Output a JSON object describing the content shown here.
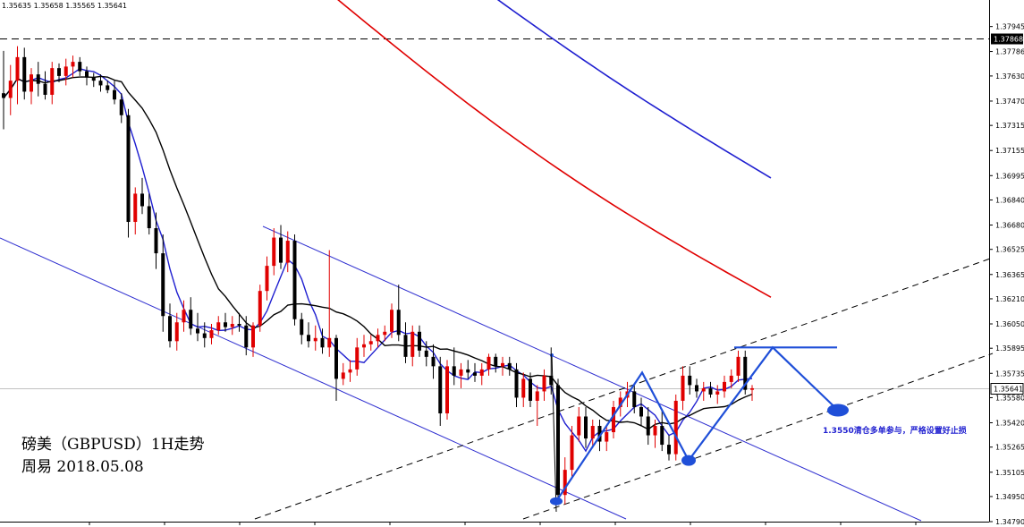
{
  "ohlc_header": "1.35635 1.35658 1.35565 1.35641",
  "title_line1": "磅美（GBPUSD）1H走势",
  "title_line2": "周易 2018.05.08",
  "note": "1.3550清仓多单参与，严格设置好止损",
  "colors": {
    "bull": "#e00000",
    "bear": "#000000",
    "ma_fast": "#1f1fd0",
    "ma_slow": "#000000",
    "ma_red": "#e00000",
    "ma_blue": "#1f1fd0",
    "channel": "#2f2fd0",
    "pattern": "#1f4fd8",
    "dashed": "#000000"
  },
  "chart_data": {
    "type": "candlestick",
    "symbol": "GBPUSD",
    "timeframe": "1H",
    "ylim": [
      1.3479,
      1.3804
    ],
    "y_ticks": [
      "1.37945",
      "1.37786",
      "1.37630",
      "1.37470",
      "1.37315",
      "1.37155",
      "1.36995",
      "1.36840",
      "1.36680",
      "1.36525",
      "1.36365",
      "1.36210",
      "1.36050",
      "1.35895",
      "1.35735",
      "1.35580",
      "1.35420",
      "1.35265",
      "1.35105",
      "1.34950",
      "1.34790"
    ],
    "marked_levels": [
      {
        "label": "1.37868",
        "value": 1.37868,
        "style": "dashed"
      },
      {
        "label": "1.35641",
        "value": 1.35641,
        "style": "current"
      }
    ],
    "candles": [
      [
        1.3752,
        1.3779,
        1.3729,
        1.3749
      ],
      [
        1.3749,
        1.377,
        1.3738,
        1.376
      ],
      [
        1.376,
        1.3782,
        1.3745,
        1.3775
      ],
      [
        1.3775,
        1.3781,
        1.3748,
        1.3753
      ],
      [
        1.3753,
        1.3768,
        1.3745,
        1.3764
      ],
      [
        1.3764,
        1.3772,
        1.375,
        1.3758
      ],
      [
        1.3758,
        1.3766,
        1.3748,
        1.3751
      ],
      [
        1.3751,
        1.3772,
        1.3745,
        1.3768
      ],
      [
        1.3768,
        1.3771,
        1.3759,
        1.3763
      ],
      [
        1.3763,
        1.3774,
        1.3757,
        1.3769
      ],
      [
        1.3769,
        1.3776,
        1.3762,
        1.3772
      ],
      [
        1.3772,
        1.3775,
        1.3763,
        1.3766
      ],
      [
        1.3766,
        1.3769,
        1.3757,
        1.3762
      ],
      [
        1.3762,
        1.3765,
        1.3756,
        1.376
      ],
      [
        1.376,
        1.3764,
        1.3753,
        1.3757
      ],
      [
        1.3757,
        1.376,
        1.3752,
        1.3754
      ],
      [
        1.3754,
        1.376,
        1.3745,
        1.3748
      ],
      [
        1.3748,
        1.3752,
        1.3733,
        1.3738
      ],
      [
        1.3738,
        1.3742,
        1.366,
        1.367
      ],
      [
        1.367,
        1.3692,
        1.3662,
        1.3688
      ],
      [
        1.3688,
        1.3698,
        1.3675,
        1.368
      ],
      [
        1.368,
        1.3688,
        1.3662,
        1.3666
      ],
      [
        1.3666,
        1.3676,
        1.364,
        1.365
      ],
      [
        1.365,
        1.3662,
        1.36,
        1.361
      ],
      [
        1.361,
        1.3618,
        1.359,
        1.3594
      ],
      [
        1.3594,
        1.3612,
        1.3588,
        1.3606
      ],
      [
        1.3606,
        1.362,
        1.36,
        1.3614
      ],
      [
        1.3614,
        1.3622,
        1.3598,
        1.3602
      ],
      [
        1.3602,
        1.3612,
        1.3594,
        1.3599
      ],
      [
        1.3599,
        1.3606,
        1.359,
        1.3596
      ],
      [
        1.3596,
        1.3605,
        1.3592,
        1.3601
      ],
      [
        1.3601,
        1.361,
        1.3598,
        1.3606
      ],
      [
        1.3606,
        1.3612,
        1.36,
        1.3603
      ],
      [
        1.3603,
        1.361,
        1.3598,
        1.3605
      ],
      [
        1.3605,
        1.3612,
        1.36,
        1.3604
      ],
      [
        1.3604,
        1.361,
        1.3585,
        1.359
      ],
      [
        1.359,
        1.3606,
        1.3584,
        1.3604
      ],
      [
        1.3604,
        1.363,
        1.36,
        1.3626
      ],
      [
        1.3626,
        1.3648,
        1.362,
        1.3642
      ],
      [
        1.3642,
        1.3666,
        1.3636,
        1.366
      ],
      [
        1.366,
        1.3668,
        1.364,
        1.3644
      ],
      [
        1.3644,
        1.3664,
        1.3638,
        1.3658
      ],
      [
        1.3658,
        1.3662,
        1.3604,
        1.3608
      ],
      [
        1.3608,
        1.3612,
        1.3592,
        1.3598
      ],
      [
        1.3598,
        1.3606,
        1.359,
        1.3594
      ],
      [
        1.3594,
        1.3604,
        1.3588,
        1.3596
      ],
      [
        1.3596,
        1.3602,
        1.3586,
        1.359
      ],
      [
        1.359,
        1.3652,
        1.3584,
        1.3596
      ],
      [
        1.3596,
        1.3598,
        1.3556,
        1.357
      ],
      [
        1.357,
        1.358,
        1.3566,
        1.3574
      ],
      [
        1.3574,
        1.3582,
        1.3568,
        1.3576
      ],
      [
        1.3576,
        1.3596,
        1.3572,
        1.359
      ],
      [
        1.359,
        1.3598,
        1.3584,
        1.3592
      ],
      [
        1.3592,
        1.3598,
        1.3588,
        1.3594
      ],
      [
        1.3594,
        1.3602,
        1.359,
        1.3598
      ],
      [
        1.3598,
        1.3604,
        1.3594,
        1.36
      ],
      [
        1.36,
        1.3618,
        1.3596,
        1.3614
      ],
      [
        1.3614,
        1.363,
        1.3594,
        1.3598
      ],
      [
        1.3598,
        1.3606,
        1.358,
        1.3584
      ],
      [
        1.3584,
        1.3604,
        1.3578,
        1.36
      ],
      [
        1.36,
        1.3604,
        1.3584,
        1.3588
      ],
      [
        1.3588,
        1.3594,
        1.3578,
        1.3584
      ],
      [
        1.3584,
        1.3592,
        1.357,
        1.3578
      ],
      [
        1.3578,
        1.3584,
        1.354,
        1.3548
      ],
      [
        1.3548,
        1.3582,
        1.3544,
        1.3578
      ],
      [
        1.3578,
        1.359,
        1.3566,
        1.3572
      ],
      [
        1.3572,
        1.358,
        1.3564,
        1.3576
      ],
      [
        1.3576,
        1.3582,
        1.357,
        1.3574
      ],
      [
        1.3574,
        1.358,
        1.3568,
        1.3572
      ],
      [
        1.3572,
        1.358,
        1.3566,
        1.3576
      ],
      [
        1.3576,
        1.3586,
        1.3572,
        1.3584
      ],
      [
        1.3584,
        1.3586,
        1.3574,
        1.3578
      ],
      [
        1.3578,
        1.3584,
        1.3572,
        1.358
      ],
      [
        1.358,
        1.3584,
        1.3572,
        1.3576
      ],
      [
        1.3576,
        1.358,
        1.3552,
        1.3558
      ],
      [
        1.3558,
        1.3574,
        1.3552,
        1.357
      ],
      [
        1.357,
        1.3574,
        1.3552,
        1.3556
      ],
      [
        1.3556,
        1.3566,
        1.354,
        1.3562
      ],
      [
        1.3562,
        1.3576,
        1.3556,
        1.3572
      ],
      [
        1.3572,
        1.359,
        1.356,
        1.3566
      ],
      [
        1.3566,
        1.357,
        1.349,
        1.3496
      ],
      [
        1.3496,
        1.352,
        1.349,
        1.3512
      ],
      [
        1.3512,
        1.354,
        1.3506,
        1.3534
      ],
      [
        1.3534,
        1.3552,
        1.353,
        1.3546
      ],
      [
        1.3546,
        1.3552,
        1.3526,
        1.3532
      ],
      [
        1.3532,
        1.3544,
        1.3526,
        1.354
      ],
      [
        1.354,
        1.3544,
        1.3524,
        1.353
      ],
      [
        1.353,
        1.354,
        1.3524,
        1.3536
      ],
      [
        1.3536,
        1.3556,
        1.3532,
        1.3552
      ],
      [
        1.3552,
        1.3562,
        1.3546,
        1.3558
      ],
      [
        1.3558,
        1.3568,
        1.3552,
        1.3562
      ],
      [
        1.3562,
        1.3566,
        1.3548,
        1.3552
      ],
      [
        1.3552,
        1.3558,
        1.354,
        1.3546
      ],
      [
        1.3546,
        1.3552,
        1.3528,
        1.3534
      ],
      [
        1.3534,
        1.3544,
        1.3526,
        1.354
      ],
      [
        1.354,
        1.355,
        1.3524,
        1.3528
      ],
      [
        1.3528,
        1.3534,
        1.3518,
        1.3522
      ],
      [
        1.3522,
        1.356,
        1.3518,
        1.3556
      ],
      [
        1.3556,
        1.3578,
        1.355,
        1.3572
      ],
      [
        1.3572,
        1.3578,
        1.356,
        1.3566
      ],
      [
        1.3566,
        1.357,
        1.3558,
        1.3562
      ],
      [
        1.3562,
        1.3568,
        1.3556,
        1.3564
      ],
      [
        1.3564,
        1.3568,
        1.3558,
        1.356
      ],
      [
        1.356,
        1.3566,
        1.3554,
        1.3562
      ],
      [
        1.3562,
        1.3572,
        1.3558,
        1.3568
      ],
      [
        1.3568,
        1.3576,
        1.3564,
        1.3572
      ],
      [
        1.3572,
        1.3588,
        1.3568,
        1.3584
      ],
      [
        1.3584,
        1.3588,
        1.356,
        1.3563
      ],
      [
        1.3563,
        1.3566,
        1.3556,
        1.3564
      ]
    ],
    "pattern_points": [
      {
        "label": "low-1",
        "value": 1.3492
      },
      {
        "label": "high-1",
        "value": 1.3574
      },
      {
        "label": "low-2",
        "value": 1.3518
      },
      {
        "label": "high-2",
        "value": 1.359
      },
      {
        "label": "target",
        "value": 1.355
      }
    ]
  }
}
